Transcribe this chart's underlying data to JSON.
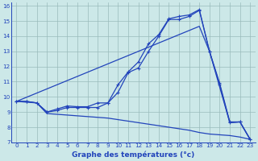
{
  "xlabel": "Graphe des températures (°c)",
  "bg_color": "#cce8e8",
  "line_color": "#2244bb",
  "grid_color": "#99bbbb",
  "xlim": [
    -0.5,
    23.5
  ],
  "ylim": [
    7,
    16.2
  ],
  "yticks": [
    7,
    8,
    9,
    10,
    11,
    12,
    13,
    14,
    15,
    16
  ],
  "xticks": [
    0,
    1,
    2,
    3,
    4,
    5,
    6,
    7,
    8,
    9,
    10,
    11,
    12,
    13,
    14,
    15,
    16,
    17,
    18,
    19,
    20,
    21,
    22,
    23
  ],
  "line1_x": [
    0,
    1,
    2,
    3,
    4,
    5,
    6,
    7,
    8,
    9,
    10,
    11,
    12,
    13,
    14,
    15,
    16,
    17,
    18,
    19,
    20,
    21,
    22,
    23
  ],
  "line1_y": [
    9.7,
    9.7,
    9.6,
    9.0,
    9.2,
    9.4,
    9.35,
    9.35,
    9.6,
    9.6,
    10.8,
    11.65,
    12.3,
    13.5,
    14.1,
    15.15,
    15.3,
    15.4,
    15.75,
    13.0,
    10.9,
    8.35,
    8.35,
    7.2
  ],
  "line2_x": [
    0,
    1,
    2,
    3,
    4,
    5,
    6,
    7,
    8,
    9,
    10,
    11,
    12,
    13,
    14,
    15,
    16,
    17,
    18,
    19,
    20,
    21,
    22,
    23
  ],
  "line2_y": [
    9.7,
    9.7,
    9.6,
    9.0,
    9.1,
    9.3,
    9.3,
    9.3,
    9.3,
    9.6,
    10.3,
    11.6,
    11.9,
    13.0,
    14.0,
    15.1,
    15.1,
    15.3,
    15.7,
    13.0,
    10.8,
    8.3,
    8.35,
    7.2
  ],
  "line3_x": [
    0,
    18,
    19,
    21,
    22,
    23
  ],
  "line3_y": [
    9.7,
    14.65,
    13.0,
    8.3,
    8.35,
    7.2
  ],
  "line4_x": [
    0,
    1,
    2,
    3,
    4,
    5,
    6,
    7,
    8,
    9,
    10,
    11,
    12,
    13,
    14,
    15,
    16,
    17,
    18,
    19,
    20,
    21,
    22,
    23
  ],
  "line4_y": [
    9.7,
    9.65,
    9.6,
    8.9,
    8.85,
    8.8,
    8.75,
    8.7,
    8.65,
    8.6,
    8.5,
    8.4,
    8.3,
    8.2,
    8.1,
    8.0,
    7.9,
    7.8,
    7.65,
    7.55,
    7.5,
    7.45,
    7.35,
    7.2
  ]
}
